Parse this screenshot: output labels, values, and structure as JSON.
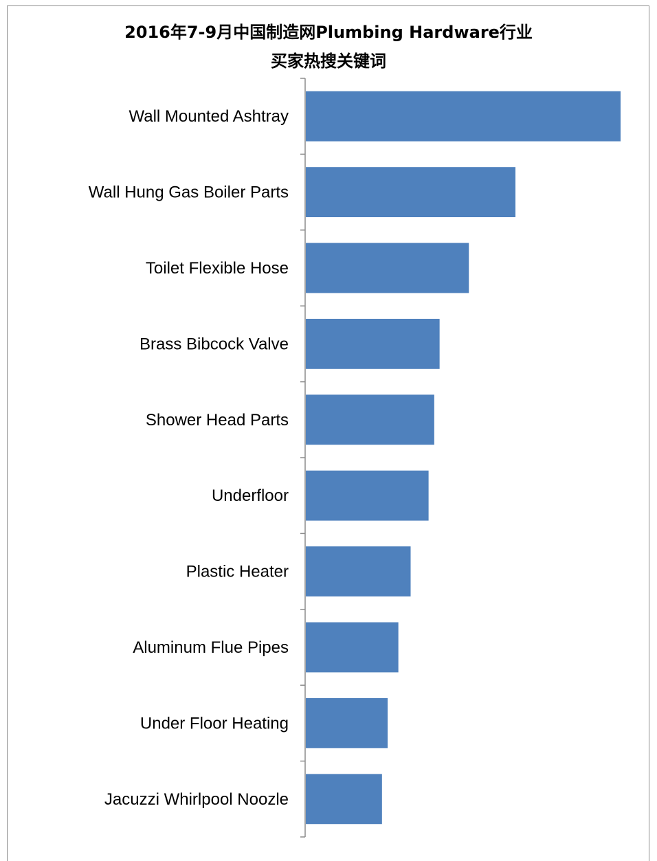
{
  "chart_data": {
    "type": "bar",
    "orientation": "horizontal",
    "title_line1": "2016年7-9月中国制造网Plumbing Hardware行业",
    "title_line2": "买家热搜关键词",
    "xlabel": "",
    "ylabel": "",
    "categories": [
      "Wall Mounted Ashtray",
      "Wall Hung Gas Boiler Parts",
      "Toilet Flexible Hose",
      "Brass Bibcock Valve",
      "Shower Head Parts",
      "Underfloor",
      "Plastic Heater",
      "Aluminum Flue Pipes",
      "Under Floor Heating",
      "Jacuzzi Whirlpool Noozle"
    ],
    "values": [
      100,
      66.6,
      51.8,
      42.5,
      40.8,
      39.0,
      33.3,
      29.4,
      26.0,
      24.2
    ],
    "xlim": [
      0,
      100
    ],
    "grid": false,
    "legend": "none",
    "bar_color": "#4f81bd",
    "axis_color": "#8c8c8c"
  }
}
